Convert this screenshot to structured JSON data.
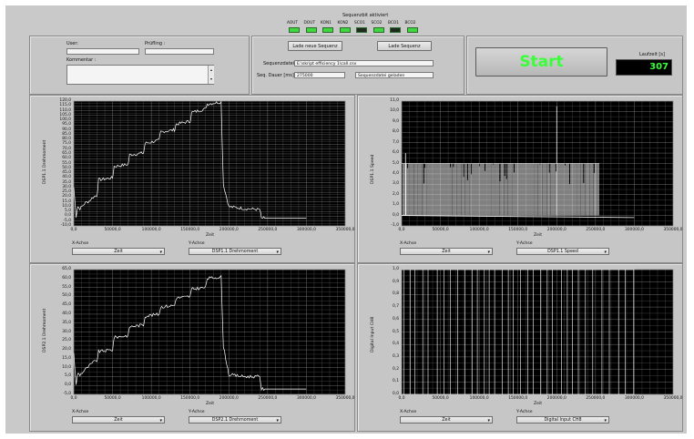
{
  "leds": {
    "title": "Sequenzbit aktiviert",
    "items": [
      "AOUT",
      "DOUT",
      "KON1",
      "KON2",
      "SCO1",
      "SCO2",
      "BCO1",
      "BCO2"
    ],
    "on_color": "#3fd83f",
    "off_color": "#1e2a1e",
    "states": [
      1,
      1,
      1,
      1,
      0,
      1,
      0,
      1
    ]
  },
  "user_panel": {
    "user_label": "User:",
    "pruefling_label": "Prüfling :",
    "kommentar_label": "Kommentar :",
    "user_value": "",
    "pruefling_value": "",
    "kommentar_value": ""
  },
  "sequence_panel": {
    "lade_neue_label": "Lade neue Sequenz",
    "lade_label": "Lade Sequenz",
    "sequenzdatei_label": "Sequenzdatei",
    "sequenzdatei_value": "E:\\skript efficiency 1\\call.csv",
    "seq_dauer_label": "Seq. Dauer [ms]",
    "seq_dauer_value": "275000",
    "status_value": "Sequenzdatei geladen"
  },
  "start_panel": {
    "start_label": "Start",
    "laufzeit_label": "Laufzeit [s]",
    "laufzeit_value": "307",
    "start_color": "#39ff39"
  },
  "charts": [
    {
      "id": "tl",
      "ylabel": "DSP1.1 Drehmoment",
      "xlabel": "Zeit",
      "xaxis_label": "X-Achse",
      "yaxis_label": "Y-Achse",
      "x_select": "Zeit",
      "y_select": "DSP1.1 Drehmoment",
      "yticks": [
        "120,0",
        "115,0",
        "110,0",
        "105,0",
        "100,0",
        "95,0",
        "90,0",
        "85,0",
        "80,0",
        "75,0",
        "70,0",
        "65,0",
        "60,0",
        "55,0",
        "50,0",
        "45,0",
        "40,0",
        "35,0",
        "30,0",
        "25,0",
        "20,0",
        "15,0",
        "10,0",
        "5,0",
        "0,0",
        "-5,0",
        "-10,0"
      ],
      "xticks": [
        "0,0",
        "50000,0",
        "100000,0",
        "150000,0",
        "200000,0",
        "250000,0",
        "300000,0",
        "350000,0"
      ]
    },
    {
      "id": "tr",
      "ylabel": "DSP1.1 Speed",
      "xlabel": "Zeit",
      "xaxis_label": "X-Achse",
      "yaxis_label": "Y-Achse",
      "x_select": "Zeit",
      "y_select": "DSP1.1 Speed",
      "yticks": [
        "11,0",
        "10,0",
        "9,0",
        "8,0",
        "7,0",
        "6,0",
        "5,0",
        "4,0",
        "3,0",
        "2,0",
        "1,0",
        "0,0",
        "-1,0"
      ],
      "xticks": [
        "0,0",
        "50000,0",
        "100000,0",
        "150000,0",
        "200000,0",
        "250000,0",
        "300000,0",
        "350000,0"
      ]
    },
    {
      "id": "bl",
      "ylabel": "DSP2.1 Drehmoment",
      "xlabel": "Zeit",
      "xaxis_label": "X-Achse",
      "yaxis_label": "Y-Achse",
      "x_select": "Zeit",
      "y_select": "DSP2.1 Drehmoment",
      "yticks": [
        "65,0",
        "60,0",
        "55,0",
        "50,0",
        "45,0",
        "40,0",
        "35,0",
        "30,0",
        "25,0",
        "20,0",
        "15,0",
        "10,0",
        "5,0",
        "0,0",
        "-5,0"
      ],
      "xticks": [
        "0,0",
        "50000,0",
        "100000,0",
        "150000,0",
        "200000,0",
        "250000,0",
        "300000,0",
        "350000,0"
      ]
    },
    {
      "id": "br",
      "ylabel": "Digital Input CH8",
      "xlabel": "Zeit",
      "xaxis_label": "X-Achse",
      "yaxis_label": "Y-Achse",
      "x_select": "Zeit",
      "y_select": "Digital Input CH8",
      "yticks": [
        "1,0",
        "0,9",
        "0,8",
        "0,7",
        "0,6",
        "0,5",
        "0,4",
        "0,3",
        "0,2",
        "0,1",
        "0,0"
      ],
      "xticks": [
        "0,0",
        "50000,0",
        "100000,0",
        "150000,0",
        "200000,0",
        "250000,0",
        "300000,0",
        "350000,0"
      ]
    }
  ],
  "chart_data": [
    {
      "type": "line",
      "ylabel": "DSP1.1 Drehmoment",
      "xlabel": "Zeit",
      "xlim": [
        0,
        350000
      ],
      "ylim": [
        -10,
        120
      ],
      "grid": true,
      "series": [
        {
          "x": [
            0,
            3000,
            5000,
            8000,
            15000,
            20000,
            25000,
            30000,
            32000,
            50000,
            52000,
            70000,
            72000,
            90000,
            92000,
            110000,
            112000,
            130000,
            132000,
            150000,
            152000,
            170000,
            172000,
            190000,
            193000,
            200000,
            220000,
            240000,
            242000,
            300000
          ],
          "y": [
            30,
            0,
            10,
            8,
            14,
            16,
            20,
            22,
            38,
            40,
            52,
            54,
            64,
            66,
            76,
            79,
            88,
            90,
            96,
            99,
            108,
            112,
            117,
            119,
            33,
            10,
            8,
            7,
            -2,
            -2
          ]
        }
      ]
    },
    {
      "type": "line",
      "ylabel": "DSP1.1 Speed",
      "xlabel": "Zeit",
      "xlim": [
        0,
        350000
      ],
      "ylim": [
        -1,
        11
      ],
      "grid": true,
      "series": [
        {
          "description_free": true,
          "x": [
            0,
            2000,
            4000,
            6000,
            10000,
            255000,
            260000,
            300000
          ],
          "y": [
            0,
            6,
            0,
            5,
            0,
            5,
            0,
            -0.2
          ]
        }
      ]
    },
    {
      "type": "line",
      "ylabel": "DSP2.1 Drehmoment",
      "xlabel": "Zeit",
      "xlim": [
        0,
        350000
      ],
      "ylim": [
        -5,
        65
      ],
      "grid": true,
      "series": [
        {
          "x": [
            0,
            3000,
            5000,
            8000,
            15000,
            20000,
            25000,
            30000,
            32000,
            50000,
            52000,
            70000,
            72000,
            90000,
            92000,
            110000,
            112000,
            130000,
            132000,
            150000,
            152000,
            170000,
            172000,
            190000,
            193000,
            200000,
            220000,
            240000,
            242000,
            300000
          ],
          "y": [
            18,
            0,
            7,
            6,
            9,
            11,
            13,
            14,
            19,
            20,
            27,
            28,
            33,
            34,
            39,
            40,
            44,
            45,
            49,
            50,
            54,
            55,
            60,
            61,
            22,
            6,
            5,
            5,
            -2,
            -2
          ]
        }
      ]
    },
    {
      "type": "line",
      "ylabel": "Digital Input CH8",
      "xlabel": "Zeit",
      "xlim": [
        0,
        350000
      ],
      "ylim": [
        0,
        1
      ],
      "grid": true,
      "series": [
        {
          "x": [
            0,
            300000
          ],
          "y": [
            1,
            1
          ]
        }
      ]
    }
  ]
}
